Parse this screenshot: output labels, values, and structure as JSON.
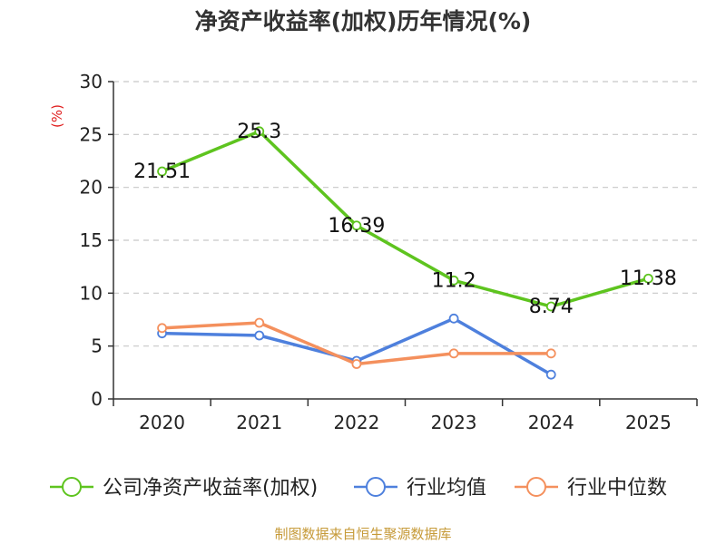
{
  "title": "净资产收益率(加权)历年情况(%)",
  "source": "制图数据来自恒生聚源数据库",
  "chart_data": {
    "type": "line",
    "title": "净资产收益率(加权)历年情况(%)",
    "ylabel": "(%)",
    "xlabel": "",
    "categories": [
      "2020",
      "2021",
      "2022",
      "2023",
      "2024",
      "2025"
    ],
    "ylim": [
      0,
      30
    ],
    "yticks": [
      0,
      5,
      10,
      15,
      20,
      25,
      30
    ],
    "grid": true,
    "legend_position": "bottom",
    "series": [
      {
        "name": "公司净资产收益率(加权)",
        "color": "#5ec41f",
        "labels": [
          "21.51",
          "25.3",
          "16.39",
          "11.2",
          "8.74",
          "11.38"
        ],
        "values": [
          21.51,
          25.3,
          16.39,
          11.2,
          8.74,
          11.38
        ]
      },
      {
        "name": "行业均值",
        "color": "#4e80dd",
        "values": [
          6.2,
          6.0,
          3.6,
          7.6,
          2.3,
          null
        ]
      },
      {
        "name": "行业中位数",
        "color": "#f4905d",
        "values": [
          6.7,
          7.2,
          3.3,
          4.3,
          4.3,
          null
        ]
      }
    ]
  }
}
